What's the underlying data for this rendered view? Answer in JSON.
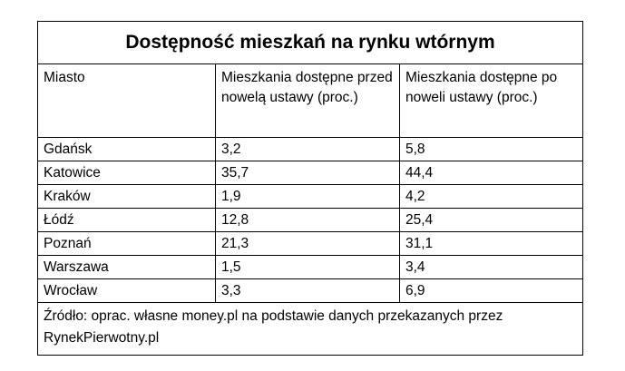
{
  "title": "Dostępność mieszkań na rynku wtórnym",
  "headers": [
    "Miasto",
    "Mieszkania dostępne przed nowelą ustawy (proc.)",
    "Mieszkania dostępne po noweli ustawy (proc.)"
  ],
  "rows": [
    {
      "city": "Gdańsk",
      "before": "3,2",
      "after": "5,8"
    },
    {
      "city": "Katowice",
      "before": "35,7",
      "after": "44,4"
    },
    {
      "city": "Kraków",
      "before": "1,9",
      "after": "4,2"
    },
    {
      "city": "Łódź",
      "before": "12,8",
      "after": "25,4"
    },
    {
      "city": "Poznań",
      "before": "21,3",
      "after": "31,1"
    },
    {
      "city": "Warszawa",
      "before": "1,5",
      "after": "3,4"
    },
    {
      "city": "Wrocław",
      "before": "3,3",
      "after": "6,9"
    }
  ],
  "source": "Źródło: oprac. własne money.pl na podstawie danych przekazanych przez RynekPierwotny.pl"
}
